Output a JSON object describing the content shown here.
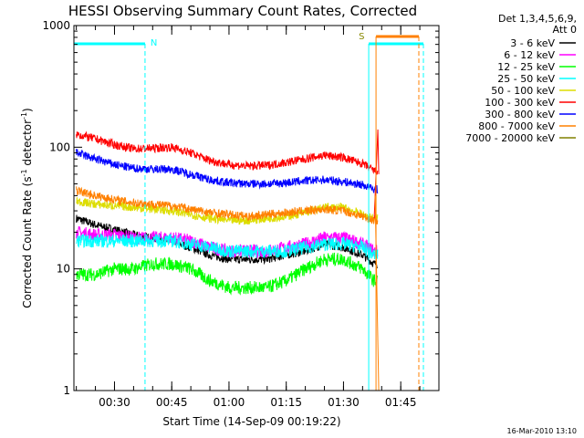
{
  "chart_data": {
    "type": "line",
    "title": "HESSI Observing Summary Count Rates, Corrected",
    "xlabel": "Start Time (14-Sep-09 00:19:22)",
    "ylabel_parts": [
      "Corrected Count Rate (s",
      "-1",
      " detector",
      "-1",
      ")"
    ],
    "yscale": "log",
    "ylim": [
      1,
      1000
    ],
    "xlim": [
      "00:19:22",
      "01:55:00"
    ],
    "y_ticks": [
      {
        "value": 1,
        "label": "1"
      },
      {
        "value": 10,
        "label": "10"
      },
      {
        "value": 100,
        "label": "100"
      },
      {
        "value": 1000,
        "label": "1000"
      }
    ],
    "x_ticks": [
      "00:30",
      "00:45",
      "01:00",
      "01:15",
      "01:30",
      "01:45"
    ],
    "legend_header": [
      "Det 1,3,4,5,6,9,",
      "Att 0"
    ],
    "legend_placement": "outside-right",
    "series": [
      {
        "name": "3 - 6 keV",
        "color": "#000000",
        "x": [
          "00:20",
          "00:25",
          "00:30",
          "00:35",
          "00:40",
          "00:45",
          "00:50",
          "00:55",
          "01:00",
          "01:05",
          "01:10",
          "01:15",
          "01:20",
          "01:25",
          "01:30",
          "01:35",
          "01:38",
          "01:39"
        ],
        "values": [
          26,
          23,
          21,
          19,
          18,
          17,
          15,
          13,
          12,
          12,
          12,
          13,
          14,
          16,
          15,
          13,
          11,
          11
        ]
      },
      {
        "name": "6 - 12 keV",
        "color": "#ff00ff",
        "x": [
          "00:20",
          "00:25",
          "00:30",
          "00:35",
          "00:40",
          "00:45",
          "00:50",
          "00:55",
          "01:00",
          "01:05",
          "01:10",
          "01:15",
          "01:20",
          "01:25",
          "01:30",
          "01:35",
          "01:38",
          "01:39"
        ],
        "values": [
          20,
          19,
          19,
          18,
          18,
          18,
          17,
          15,
          14,
          14,
          14,
          15,
          16,
          18,
          18,
          16,
          14,
          14
        ]
      },
      {
        "name": "12 - 25 keV",
        "color": "#00ff00",
        "x": [
          "00:20",
          "00:25",
          "00:30",
          "00:35",
          "00:40",
          "00:45",
          "00:50",
          "00:55",
          "01:00",
          "01:05",
          "01:10",
          "01:15",
          "01:20",
          "01:25",
          "01:30",
          "01:35",
          "01:38",
          "01:39"
        ],
        "values": [
          9,
          9,
          10,
          10,
          11,
          11,
          10,
          8,
          7,
          7,
          7,
          8,
          10,
          12,
          12,
          10,
          8,
          8
        ]
      },
      {
        "name": "25 - 50 keV",
        "color": "#00ffff",
        "x": [
          "00:20",
          "00:25",
          "00:30",
          "00:35",
          "00:40",
          "00:45",
          "00:50",
          "00:55",
          "01:00",
          "01:05",
          "01:10",
          "01:15",
          "01:20",
          "01:25",
          "01:30",
          "01:35",
          "01:38",
          "01:39"
        ],
        "values": [
          17,
          17,
          17,
          17,
          17,
          17,
          16,
          15,
          14,
          14,
          14,
          14,
          15,
          16,
          16,
          15,
          13,
          13
        ]
      },
      {
        "name": "50 - 100 keV",
        "color": "#dddd00",
        "x": [
          "00:20",
          "00:25",
          "00:30",
          "00:35",
          "00:40",
          "00:45",
          "00:50",
          "00:55",
          "01:00",
          "01:05",
          "01:10",
          "01:15",
          "01:20",
          "01:25",
          "01:30",
          "01:35",
          "01:38",
          "01:39"
        ],
        "values": [
          36,
          34,
          33,
          32,
          31,
          30,
          28,
          26,
          25,
          25,
          26,
          27,
          29,
          32,
          32,
          28,
          26,
          26
        ]
      },
      {
        "name": "100 - 300 keV",
        "color": "#ff0000",
        "x": [
          "00:20",
          "00:25",
          "00:30",
          "00:35",
          "00:40",
          "00:45",
          "00:50",
          "00:55",
          "01:00",
          "01:05",
          "01:10",
          "01:15",
          "01:20",
          "01:25",
          "01:30",
          "01:35",
          "01:38",
          "01:39"
        ],
        "values": [
          128,
          117,
          105,
          97,
          98,
          100,
          90,
          78,
          72,
          70,
          71,
          75,
          80,
          86,
          82,
          73,
          64,
          64
        ]
      },
      {
        "name": "300 - 800 keV",
        "color": "#0000ff",
        "x": [
          "00:20",
          "00:25",
          "00:30",
          "00:35",
          "00:40",
          "00:45",
          "00:50",
          "00:55",
          "01:00",
          "01:05",
          "01:10",
          "01:15",
          "01:20",
          "01:25",
          "01:30",
          "01:35",
          "01:38",
          "01:39"
        ],
        "values": [
          90,
          80,
          72,
          67,
          66,
          66,
          60,
          54,
          51,
          50,
          50,
          51,
          53,
          54,
          52,
          49,
          45,
          45
        ]
      },
      {
        "name": "800 - 7000 keV",
        "color": "#ff8000",
        "x": [
          "00:20",
          "00:25",
          "00:30",
          "00:35",
          "00:40",
          "00:45",
          "00:50",
          "00:55",
          "01:00",
          "01:05",
          "01:10",
          "01:15",
          "01:20",
          "01:25",
          "01:30",
          "01:35",
          "01:38",
          "01:39"
        ],
        "values": [
          44,
          40,
          37,
          35,
          34,
          33,
          31,
          29,
          28,
          27,
          28,
          29,
          30,
          31,
          30,
          27,
          25,
          25
        ]
      },
      {
        "name": "7000 - 20000 keV",
        "color": "#808000",
        "x": [],
        "values": []
      }
    ],
    "markers": [
      {
        "label": "N",
        "time": "00:38",
        "color": "#00ffff"
      },
      {
        "label": "S",
        "time": "01:39",
        "color": "#ff8000"
      }
    ]
  },
  "footer": {
    "timestamp": "16-Mar-2010 13:10"
  }
}
